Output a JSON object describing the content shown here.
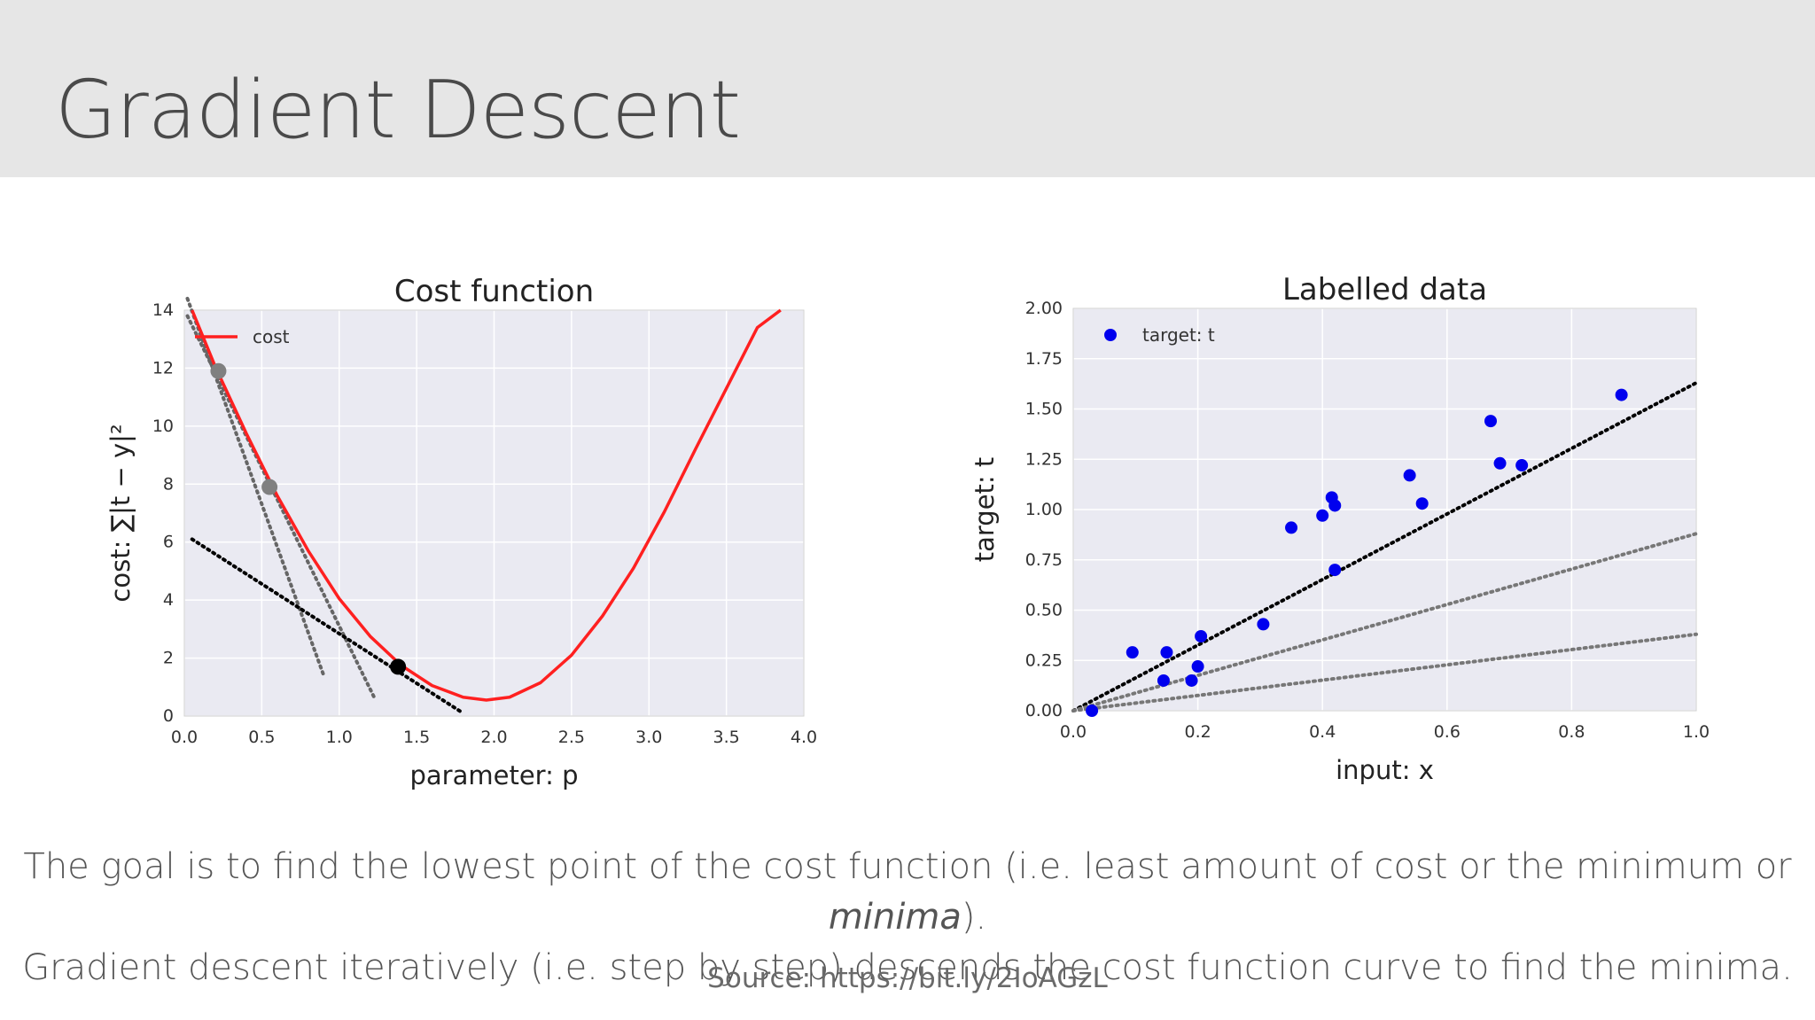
{
  "slide": {
    "title": "Gradient Descent",
    "caption_line1_before": "The goal is to find the lowest point of the cost function (i.e. least amount of cost or the minimum or ",
    "caption_line1_italic": "minima",
    "caption_line1_after": ").",
    "caption_line2": "Gradient descent iteratively (i.e. step by step) descends the cost function curve to find the minima.",
    "source": "Source: https://bit.ly/2IoAGzL"
  },
  "chart_data": [
    {
      "type": "line",
      "title": "Cost function",
      "xlabel": "parameter: p",
      "ylabel": "cost: ∑|t − y|²",
      "xlim": [
        0.0,
        4.0
      ],
      "ylim": [
        0,
        14
      ],
      "xticks": [
        "0.0",
        "0.5",
        "1.0",
        "1.5",
        "2.0",
        "2.5",
        "3.0",
        "3.5",
        "4.0"
      ],
      "yticks": [
        "0",
        "2",
        "4",
        "6",
        "8",
        "10",
        "12",
        "14"
      ],
      "grid": true,
      "legend": {
        "position": "top-left",
        "entries": [
          "cost"
        ]
      },
      "curve": {
        "name": "cost",
        "color": "#ff2020",
        "x": [
          0.05,
          0.2,
          0.4,
          0.6,
          0.8,
          1.0,
          1.2,
          1.4,
          1.6,
          1.8,
          1.95,
          2.1,
          2.3,
          2.5,
          2.7,
          2.9,
          3.1,
          3.3,
          3.5,
          3.7,
          3.85
        ],
        "y": [
          14.0,
          12.05,
          9.75,
          7.6,
          5.7,
          4.05,
          2.75,
          1.75,
          1.05,
          0.65,
          0.55,
          0.65,
          1.15,
          2.1,
          3.45,
          5.1,
          7.05,
          9.2,
          11.3,
          13.4,
          14.0
        ]
      },
      "points": [
        {
          "x": 0.22,
          "y": 11.9,
          "color": "#808080"
        },
        {
          "x": 0.55,
          "y": 7.9,
          "color": "#808080"
        },
        {
          "x": 1.38,
          "y": 1.7,
          "color": "#000000"
        }
      ],
      "tangents": [
        {
          "x": [
            0.02,
            0.9
          ],
          "y": [
            14.4,
            1.4
          ],
          "color": "#666666"
        },
        {
          "x": 0.02,
          "x2": 1.23,
          "y": 13.8,
          "y2": 0.6,
          "color": "#666666"
        },
        {
          "x": [
            0.05,
            1.8
          ],
          "y": [
            6.1,
            0.1
          ],
          "color": "#000000"
        }
      ]
    },
    {
      "type": "scatter",
      "title": "Labelled data",
      "xlabel": "input: x",
      "ylabel": "target: t",
      "xlim": [
        0.0,
        1.0
      ],
      "ylim": [
        0.0,
        2.0
      ],
      "xticks": [
        "0.0",
        "0.2",
        "0.4",
        "0.6",
        "0.8",
        "1.0"
      ],
      "yticks": [
        "0.00",
        "0.25",
        "0.50",
        "0.75",
        "1.00",
        "1.25",
        "1.50",
        "1.75",
        "2.00"
      ],
      "grid": true,
      "legend": {
        "position": "top-left",
        "entries": [
          "target: t"
        ]
      },
      "series": [
        {
          "name": "target: t",
          "color": "#0000ee",
          "x": [
            0.03,
            0.095,
            0.145,
            0.15,
            0.19,
            0.2,
            0.205,
            0.305,
            0.35,
            0.4,
            0.415,
            0.42,
            0.42,
            0.54,
            0.56,
            0.67,
            0.685,
            0.72,
            0.88
          ],
          "y": [
            0.0,
            0.29,
            0.15,
            0.29,
            0.15,
            0.22,
            0.37,
            0.43,
            0.91,
            0.97,
            1.06,
            1.02,
            0.7,
            1.17,
            1.03,
            1.44,
            1.23,
            1.22,
            1.57
          ]
        }
      ],
      "lines": [
        {
          "x": [
            0.0,
            1.0
          ],
          "y": [
            0.0,
            1.63
          ],
          "color": "#000000"
        },
        {
          "x": [
            0.0,
            1.0
          ],
          "y": [
            0.0,
            0.88
          ],
          "color": "#777777"
        },
        {
          "x": [
            0.0,
            1.0
          ],
          "y": [
            0.0,
            0.38
          ],
          "color": "#777777"
        }
      ]
    }
  ]
}
